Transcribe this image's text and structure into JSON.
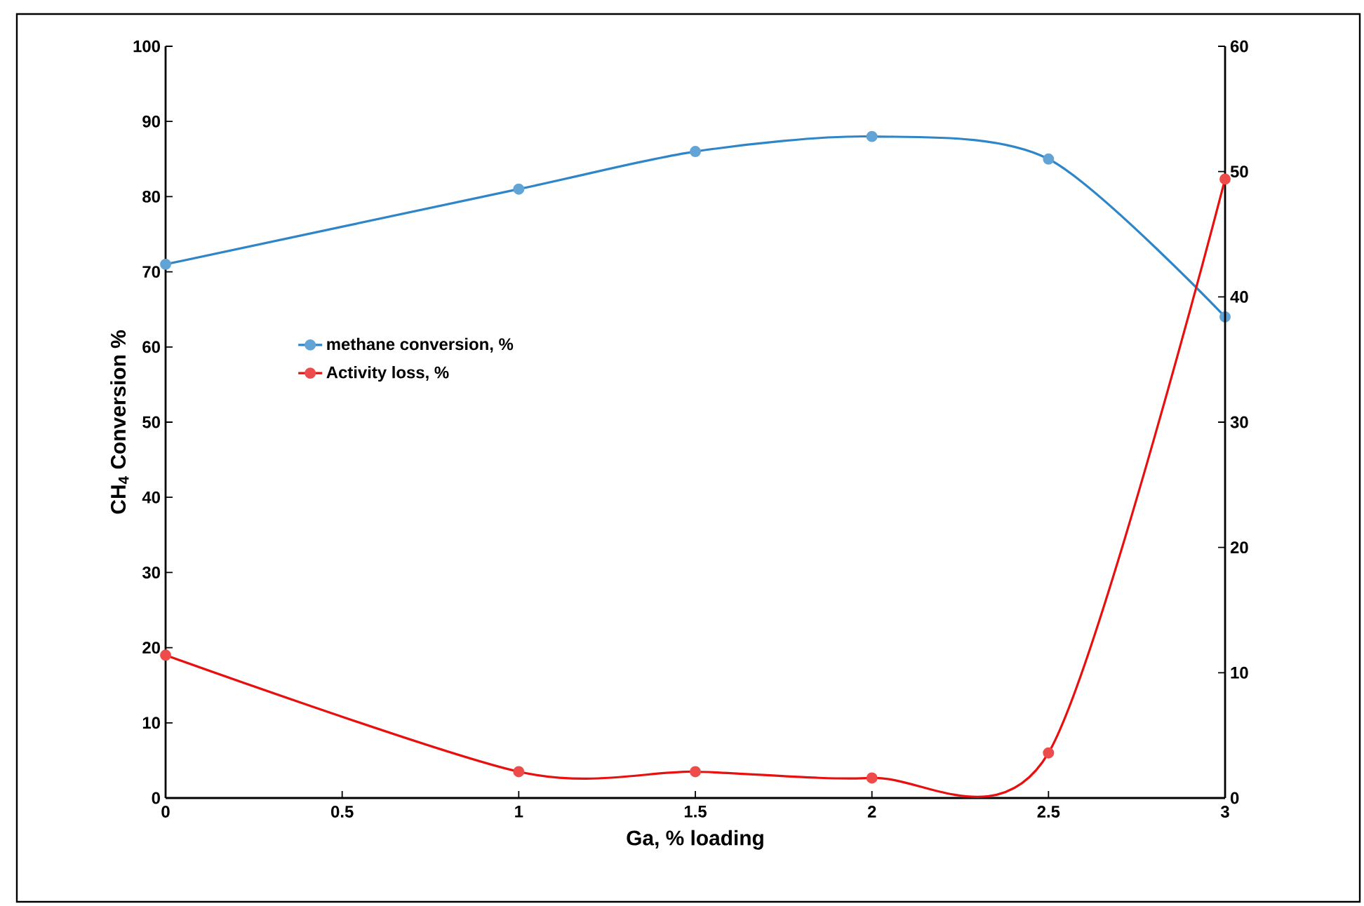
{
  "chart_data": {
    "type": "line",
    "xlabel": "Ga, % loading",
    "ylabel": "CH$_{4}$ Conversion %",
    "x": [
      0,
      1,
      1.5,
      2,
      2.5,
      3
    ],
    "series": [
      {
        "name": "methane conversion, %",
        "color": "#2e86c8",
        "values": [
          71,
          81,
          86,
          88,
          85,
          64
        ]
      },
      {
        "name": "Activity loss, %",
        "color": "#e8100f",
        "axis": "y2",
        "values": [
          11.4,
          2.1,
          2.1,
          1.6,
          3.6,
          49.4
        ]
      }
    ],
    "xlim": [
      0,
      3
    ],
    "xticks": [
      0,
      0.5,
      1,
      1.5,
      2,
      2.5,
      3
    ],
    "ylim": [
      0,
      100
    ],
    "yticks": [
      0,
      10,
      20,
      30,
      40,
      50,
      60,
      70,
      80,
      90,
      100
    ],
    "y2lim": [
      0,
      60
    ],
    "y2ticks": [
      0,
      10,
      20,
      30,
      40,
      50,
      60
    ],
    "legend": "left",
    "marker": "circle",
    "line_style": "solid",
    "grid": false
  }
}
